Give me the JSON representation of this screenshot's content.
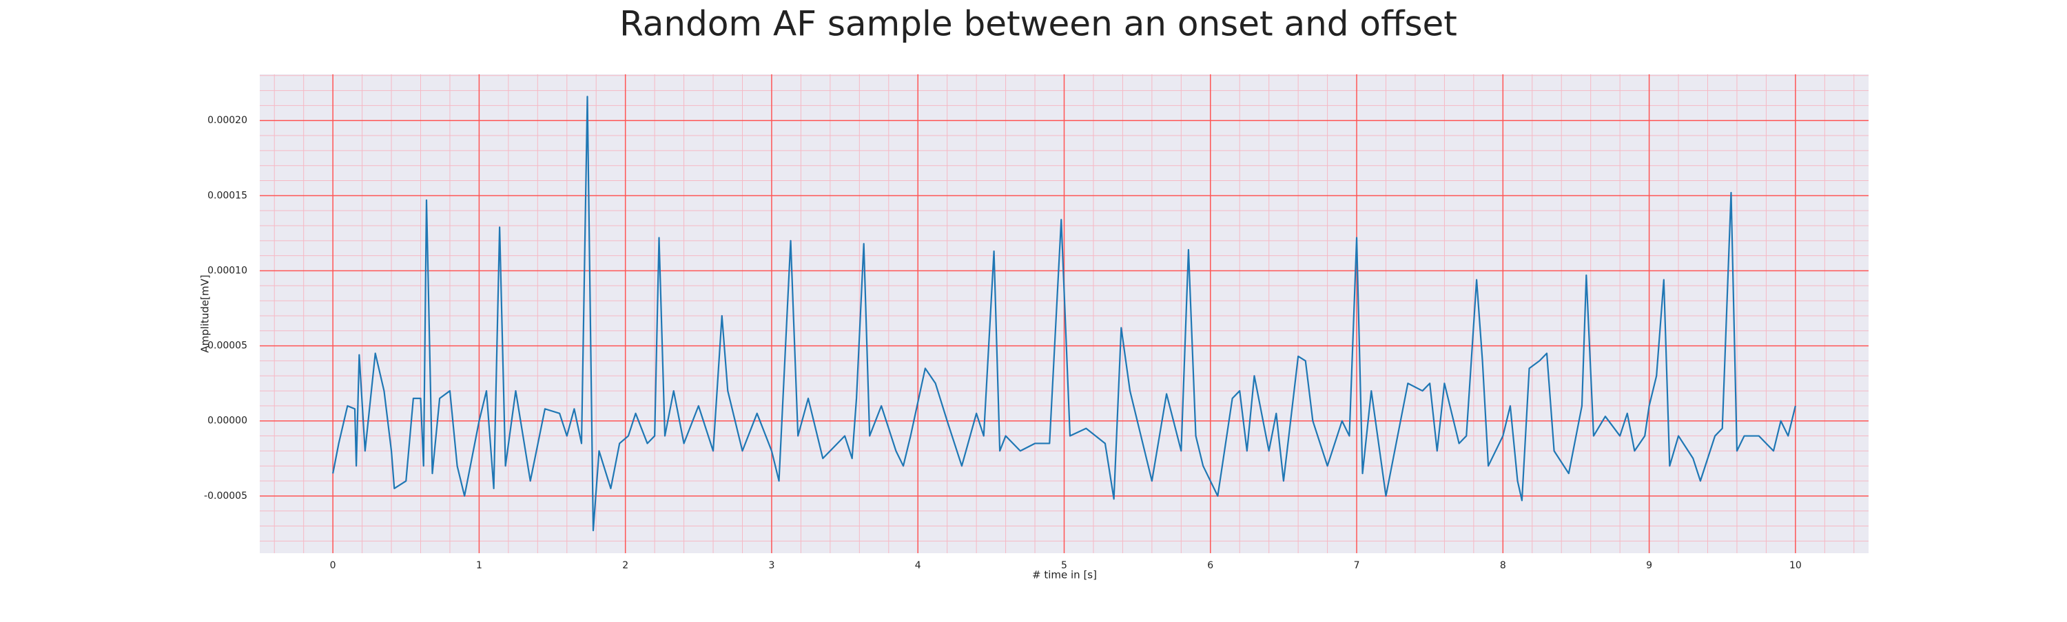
{
  "chart_data": {
    "type": "line",
    "title": "Random AF sample between an onset and offset",
    "xlabel": "# time in [s]",
    "ylabel": "Amplitude[mV]",
    "xlim": [
      -0.5,
      10.5
    ],
    "ylim": [
      -8.81e-05,
      0.0002308
    ],
    "xticks": [
      0,
      1,
      2,
      3,
      4,
      5,
      6,
      7,
      8,
      9,
      10
    ],
    "yticks": [
      {
        "value": -5e-05,
        "label": "-0.00005"
      },
      {
        "value": 0,
        "label": "0.00000"
      },
      {
        "value": 5e-05,
        "label": "0.00005"
      },
      {
        "value": 0.0001,
        "label": "0.00010"
      },
      {
        "value": 0.00015,
        "label": "0.00015"
      },
      {
        "value": 0.0002,
        "label": "0.00020"
      }
    ],
    "grid": true,
    "minor_grid": true,
    "background": "#eaeaf2",
    "grid_color": "#ff5555",
    "minor_grid_color": "#f6b8c4",
    "series": [
      {
        "color": "#1f77b4",
        "x": [
          0,
          0.04,
          0.1,
          0.15,
          0.16,
          0.18,
          0.22,
          0.29,
          0.35,
          0.4,
          0.42,
          0.5,
          0.55,
          0.6,
          0.62,
          0.64,
          0.68,
          0.73,
          0.8,
          0.85,
          0.9,
          1.0,
          1.05,
          1.1,
          1.14,
          1.18,
          1.25,
          1.3,
          1.35,
          1.45,
          1.55,
          1.6,
          1.65,
          1.7,
          1.74,
          1.78,
          1.82,
          1.9,
          1.96,
          2.02,
          2.07,
          2.15,
          2.2,
          2.23,
          2.27,
          2.33,
          2.4,
          2.5,
          2.6,
          2.66,
          2.7,
          2.8,
          2.9,
          3.0,
          3.05,
          3.13,
          3.18,
          3.25,
          3.35,
          3.5,
          3.55,
          3.58,
          3.63,
          3.67,
          3.75,
          3.85,
          3.9,
          3.95,
          4.05,
          4.12,
          4.2,
          4.3,
          4.4,
          4.45,
          4.52,
          4.56,
          4.6,
          4.7,
          4.8,
          4.9,
          4.98,
          5.04,
          5.15,
          5.28,
          5.34,
          5.39,
          5.45,
          5.55,
          5.6,
          5.7,
          5.8,
          5.85,
          5.9,
          5.95,
          6.05,
          6.15,
          6.2,
          6.25,
          6.3,
          6.4,
          6.45,
          6.5,
          6.6,
          6.65,
          6.7,
          6.8,
          6.9,
          6.95,
          7.0,
          7.04,
          7.1,
          7.2,
          7.3,
          7.35,
          7.45,
          7.5,
          7.55,
          7.6,
          7.7,
          7.75,
          7.82,
          7.86,
          7.9,
          8.0,
          8.05,
          8.1,
          8.13,
          8.18,
          8.25,
          8.3,
          8.35,
          8.45,
          8.5,
          8.54,
          8.57,
          8.62,
          8.7,
          8.8,
          8.85,
          8.9,
          8.97,
          9.0,
          9.05,
          9.1,
          9.14,
          9.2,
          9.3,
          9.35,
          9.45,
          9.5,
          9.56,
          9.6,
          9.65,
          9.75,
          9.8,
          9.85,
          9.9,
          9.95,
          10.0
        ],
        "values": [
          -3.5e-05,
          -1.5e-05,
          1e-05,
          8e-06,
          -3e-05,
          4.4e-05,
          -2e-05,
          4.5e-05,
          2e-05,
          -2e-05,
          -4.5e-05,
          -4e-05,
          1.5e-05,
          1.5e-05,
          -3e-05,
          0.000147,
          -3.5e-05,
          1.5e-05,
          2e-05,
          -3e-05,
          -5e-05,
          0,
          2e-05,
          -4.5e-05,
          0.000129,
          -3e-05,
          2e-05,
          -1e-05,
          -4e-05,
          8e-06,
          5e-06,
          -1e-05,
          8e-06,
          -1.5e-05,
          0.000216,
          -7.3e-05,
          -2e-05,
          -4.5e-05,
          -1.5e-05,
          -1e-05,
          5e-06,
          -1.5e-05,
          -1e-05,
          0.000122,
          -1e-05,
          2e-05,
          -1.5e-05,
          1e-05,
          -2e-05,
          7e-05,
          2e-05,
          -2e-05,
          5e-06,
          -2e-05,
          -4e-05,
          0.00012,
          -1e-05,
          1.5e-05,
          -2.5e-05,
          -1e-05,
          -2.5e-05,
          1.5e-05,
          0.000118,
          -1e-05,
          1e-05,
          -2e-05,
          -3e-05,
          -1e-05,
          3.5e-05,
          2.5e-05,
          0,
          -3e-05,
          5e-06,
          -1e-05,
          0.000113,
          -2e-05,
          -1e-05,
          -2e-05,
          -1.5e-05,
          -1.5e-05,
          0.000134,
          -1e-05,
          -5e-06,
          -1.5e-05,
          -5.2e-05,
          6.2e-05,
          2e-05,
          -2e-05,
          -4e-05,
          1.8e-05,
          -2e-05,
          0.000114,
          -1e-05,
          -3e-05,
          -5e-05,
          1.5e-05,
          2e-05,
          -2e-05,
          3e-05,
          -2e-05,
          5e-06,
          -4e-05,
          4.3e-05,
          4e-05,
          0,
          -3e-05,
          0,
          -1e-05,
          0.000122,
          -3.5e-05,
          2e-05,
          -5e-05,
          0,
          2.5e-05,
          2e-05,
          2.5e-05,
          -2e-05,
          2.5e-05,
          -1.5e-05,
          -1e-05,
          9.4e-05,
          4e-05,
          -3e-05,
          -1e-05,
          1e-05,
          -4e-05,
          -5.3e-05,
          3.5e-05,
          4e-05,
          4.5e-05,
          -2e-05,
          -3.5e-05,
          -1e-05,
          1e-05,
          9.7e-05,
          -1e-05,
          3e-06,
          -1e-05,
          5e-06,
          -2e-05,
          -1e-05,
          1e-05,
          3e-05,
          9.4e-05,
          -3e-05,
          -1e-05,
          -2.5e-05,
          -4e-05,
          -1e-05,
          -5e-06,
          0.000152,
          -2e-05,
          -1e-05,
          -1e-05,
          -1.5e-05,
          -2e-05,
          0,
          -1e-05,
          1e-05
        ]
      }
    ]
  }
}
